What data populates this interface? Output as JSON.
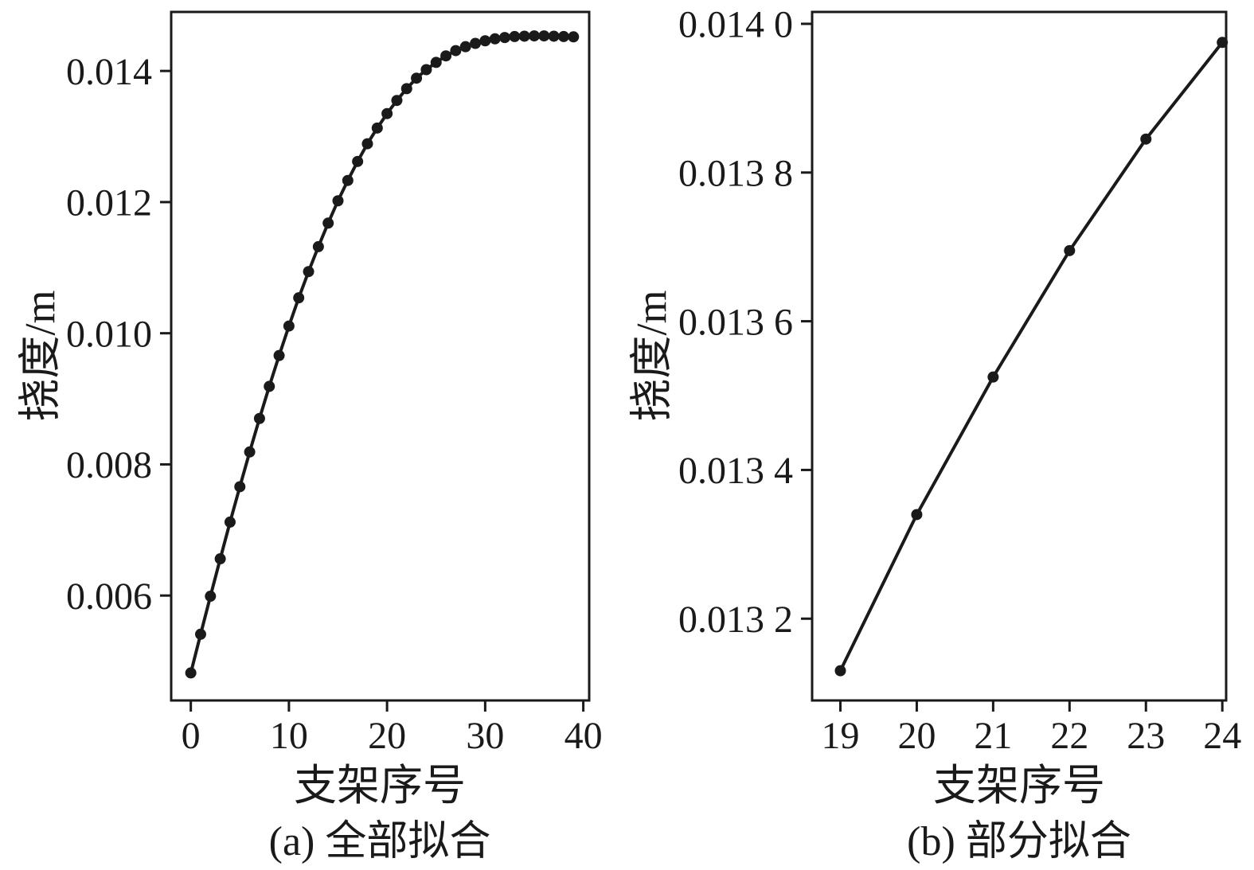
{
  "page": {
    "background": "#ffffff"
  },
  "colors": {
    "axis": "#1a1a1a",
    "line": "#1a1a1a",
    "marker": "#1a1a1a",
    "text": "#1a1a1a"
  },
  "chart_data": [
    {
      "type": "line",
      "title": "(a) 全部拟合",
      "xlabel": "支架序号",
      "ylabel": "挠度/m",
      "legend": "none",
      "grid": false,
      "xlim": [
        -2,
        40.6
      ],
      "ylim": [
        0.0044,
        0.0149
      ],
      "xticks": [
        0,
        10,
        20,
        30,
        40
      ],
      "xtick_labels": [
        "0",
        "10",
        "20",
        "30",
        "40"
      ],
      "yticks": [
        0.006,
        0.008,
        0.01,
        0.012,
        0.014
      ],
      "ytick_labels": [
        "0.006",
        "0.008",
        "0.010",
        "0.012",
        "0.014"
      ],
      "x": [
        0,
        1,
        2,
        3,
        4,
        5,
        6,
        7,
        8,
        9,
        10,
        11,
        12,
        13,
        14,
        15,
        16,
        17,
        18,
        19,
        20,
        21,
        22,
        23,
        24,
        25,
        26,
        27,
        28,
        29,
        30,
        31,
        32,
        33,
        34,
        35,
        36,
        37,
        38,
        39
      ],
      "y": [
        0.00482,
        0.00541,
        0.00599,
        0.00656,
        0.00712,
        0.00766,
        0.00819,
        0.0087,
        0.00919,
        0.00966,
        0.01011,
        0.01054,
        0.01094,
        0.01132,
        0.01168,
        0.01202,
        0.01233,
        0.01262,
        0.01289,
        0.01313,
        0.01335,
        0.01355,
        0.01373,
        0.01389,
        0.01402,
        0.01413,
        0.01423,
        0.01431,
        0.01437,
        0.01442,
        0.01446,
        0.01449,
        0.01451,
        0.014525,
        0.01453,
        0.014535,
        0.014535,
        0.01453,
        0.014525,
        0.01452
      ]
    },
    {
      "type": "line",
      "title": "(b) 部分拟合",
      "xlabel": "支架序号",
      "ylabel": "挠度/m",
      "legend": "none",
      "grid": false,
      "xlim": [
        18.63,
        24.05
      ],
      "ylim": [
        0.01309,
        0.014016
      ],
      "xticks": [
        19,
        20,
        21,
        22,
        23,
        24
      ],
      "xtick_labels": [
        "19",
        "20",
        "21",
        "22",
        "23",
        "24"
      ],
      "yticks": [
        0.0132,
        0.0134,
        0.0136,
        0.0138,
        0.014
      ],
      "ytick_labels": [
        "0.013 2",
        "0.013 4",
        "0.013 6",
        "0.013 8",
        "0.014 0"
      ],
      "x": [
        19,
        20,
        21,
        22,
        23,
        24
      ],
      "y": [
        0.01313,
        0.01334,
        0.013525,
        0.013695,
        0.013845,
        0.013975
      ]
    }
  ]
}
